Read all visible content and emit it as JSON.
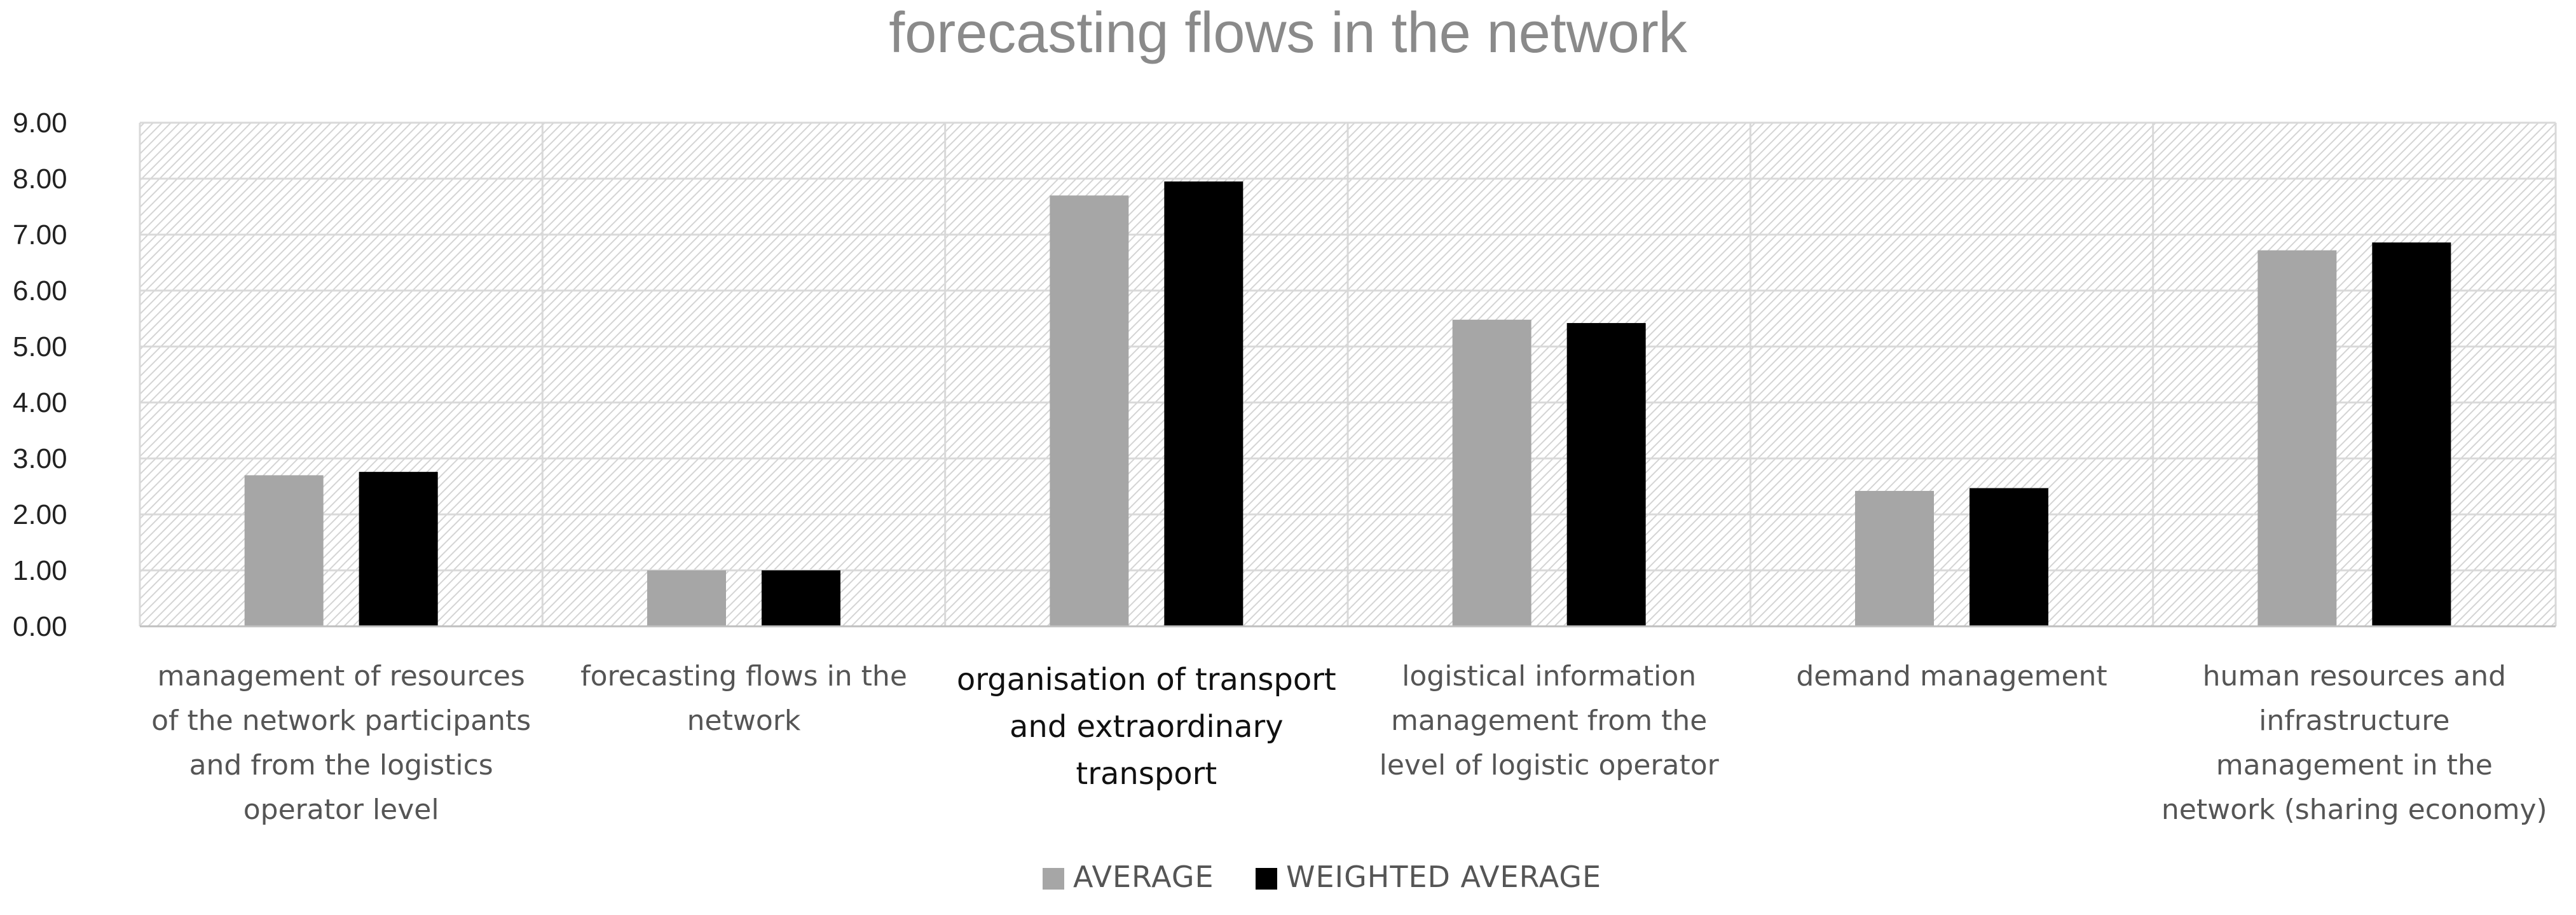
{
  "chart_data": {
    "type": "bar",
    "title": "forecasting flows in the network",
    "xlabel": "",
    "ylabel": "",
    "ylim": [
      0,
      9
    ],
    "yticks": [
      "0.00",
      "1.00",
      "2.00",
      "3.00",
      "4.00",
      "5.00",
      "6.00",
      "7.00",
      "8.00",
      "9.00"
    ],
    "grid": true,
    "legend_position": "bottom",
    "categories": [
      "management of resources of the network participants and from the logistics operator level",
      "forecasting flows in the network",
      "organisation of transport and extraordinary transport",
      "logistical information management from the level of logistic operator",
      "demand management",
      "human resources and infrastructure management in the network (sharing economy)"
    ],
    "category_lines": [
      [
        "management of resources",
        "of the network participants",
        "and from the logistics",
        "operator level"
      ],
      [
        "forecasting flows in the",
        "network"
      ],
      [
        "organisation of transport",
        "and extraordinary",
        "transport"
      ],
      [
        "logistical information",
        "management from the",
        "level of logistic operator"
      ],
      [
        "demand management"
      ],
      [
        "human resources and",
        "infrastructure",
        "management in the",
        "network (sharing economy)"
      ]
    ],
    "series": [
      {
        "name": "AVERAGE",
        "color": "#a6a6a6",
        "values": [
          2.7,
          1.0,
          7.7,
          5.48,
          2.42,
          6.72
        ]
      },
      {
        "name": "WEIGHTED AVERAGE",
        "color": "#000000",
        "values": [
          2.76,
          1.0,
          7.95,
          5.42,
          2.47,
          6.86
        ]
      }
    ]
  }
}
